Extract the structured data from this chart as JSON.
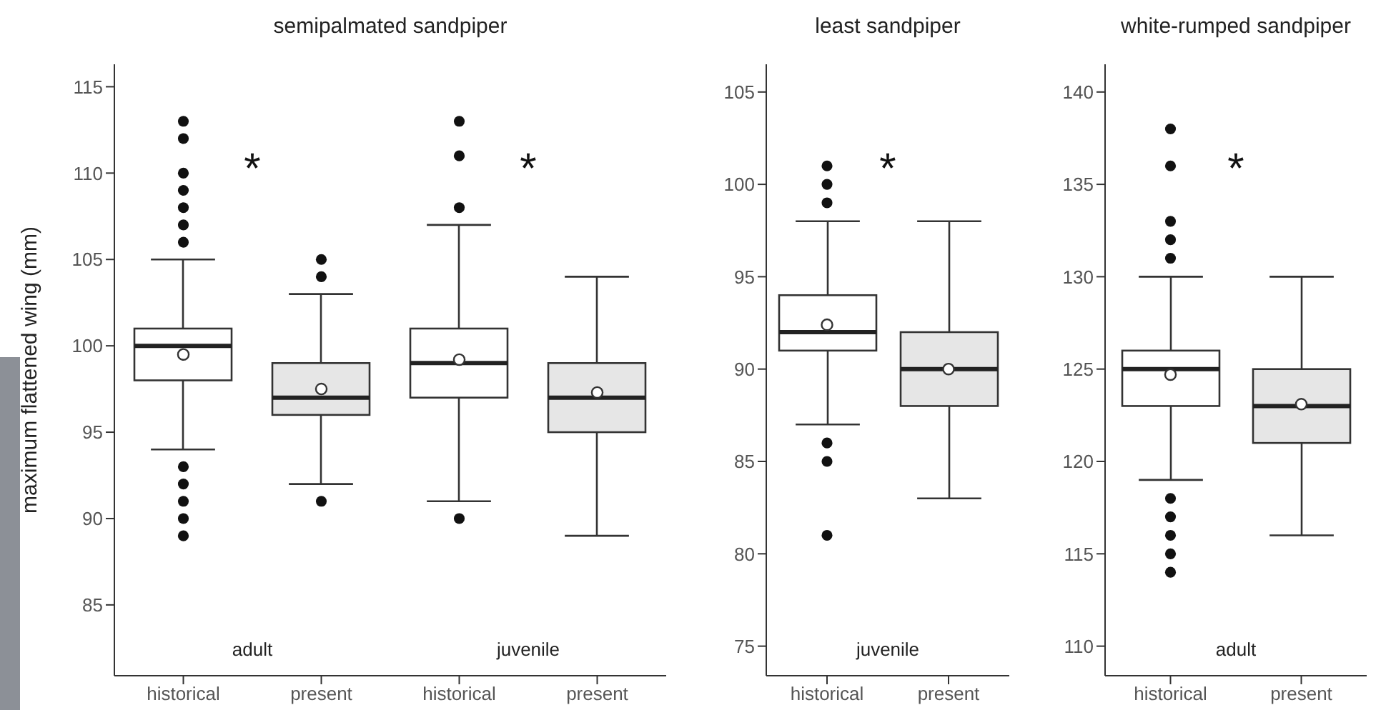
{
  "chart_data": [
    {
      "type": "box",
      "title": "semipalmated sandpiper",
      "ylabel": "maximum flattened wing (mm)",
      "categories": [
        "historical",
        "present",
        "historical",
        "present"
      ],
      "colors": [
        "#ffffff",
        "#e6e6e6",
        "#ffffff",
        "#e6e6e6"
      ],
      "ylim": [
        80.9,
        116.3
      ],
      "yticks": [
        85,
        90,
        95,
        100,
        105,
        110,
        115
      ],
      "annotations": [
        "*",
        "adult",
        "*",
        "juvenile"
      ],
      "boxes": [
        {
          "low": 94,
          "q1": 98,
          "median": 100,
          "q3": 101,
          "high": 105,
          "mean": 99.5,
          "outliers": [
            89,
            90,
            91,
            92,
            93,
            106,
            107,
            108,
            109,
            110,
            112,
            113
          ]
        },
        {
          "low": 92,
          "q1": 96,
          "median": 97,
          "q3": 99,
          "high": 103,
          "mean": 97.5,
          "outliers": [
            91,
            104,
            105
          ]
        },
        {
          "low": 91,
          "q1": 97,
          "median": 99,
          "q3": 101,
          "high": 107,
          "mean": 99.2,
          "outliers": [
            90,
            108,
            111,
            113
          ]
        },
        {
          "low": 89,
          "q1": 95,
          "median": 97,
          "q3": 99,
          "high": 104,
          "mean": 97.3
        }
      ]
    },
    {
      "type": "box",
      "title": "least sandpiper",
      "categories": [
        "historical",
        "present"
      ],
      "colors": [
        "#ffffff",
        "#e6e6e6"
      ],
      "ylim": [
        73.4,
        106.5
      ],
      "yticks": [
        75,
        80,
        85,
        90,
        95,
        100,
        105
      ],
      "annotations": [
        "*",
        "juvenile"
      ],
      "boxes": [
        {
          "low": 87,
          "q1": 91,
          "median": 92,
          "q3": 94,
          "high": 98,
          "mean": 92.4,
          "outliers": [
            81,
            85,
            86,
            99,
            100,
            101
          ]
        },
        {
          "low": 83,
          "q1": 88,
          "median": 90,
          "q3": 92,
          "high": 98,
          "mean": 90
        }
      ]
    },
    {
      "type": "box",
      "title": "white-rumped sandpiper",
      "categories": [
        "historical",
        "present"
      ],
      "colors": [
        "#ffffff",
        "#e6e6e6"
      ],
      "ylim": [
        108.4,
        141.5
      ],
      "yticks": [
        110,
        115,
        120,
        125,
        130,
        135,
        140
      ],
      "annotations": [
        "*",
        "adult"
      ],
      "boxes": [
        {
          "low": 119,
          "q1": 123,
          "median": 125,
          "q3": 126,
          "high": 130,
          "mean": 124.7,
          "outliers": [
            114,
            115,
            116,
            117,
            118,
            131,
            132,
            133,
            136,
            138
          ]
        },
        {
          "low": 116,
          "q1": 121,
          "median": 123,
          "q3": 125,
          "high": 130,
          "mean": 123.1
        }
      ]
    }
  ]
}
